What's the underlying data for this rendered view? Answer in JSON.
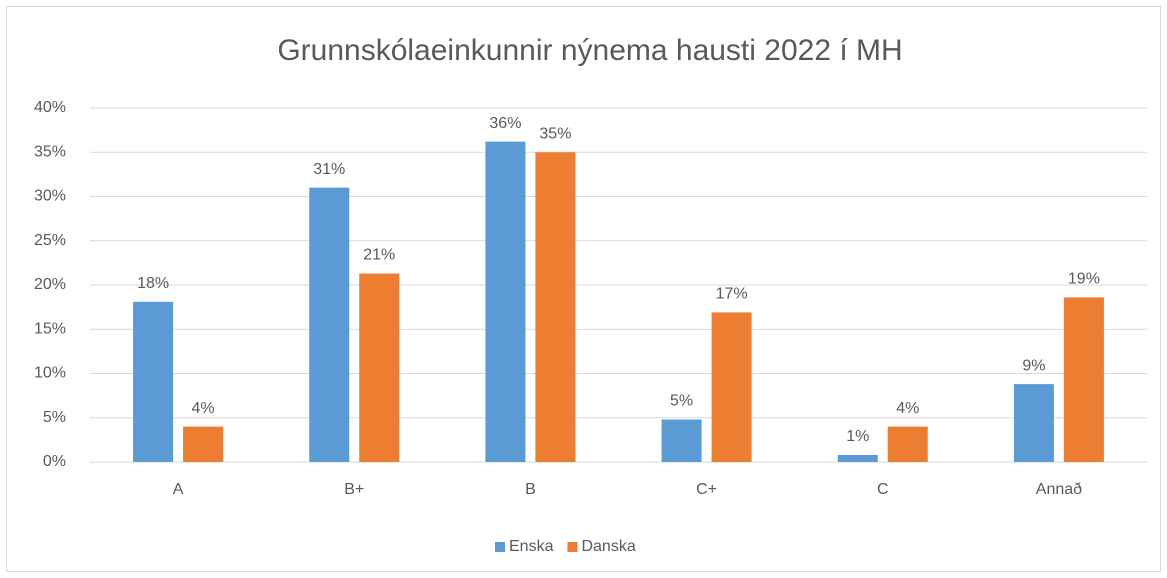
{
  "chart_data": {
    "type": "bar",
    "title": "Grunnskólaeinkunnir nýnema hausti 2022 í MH",
    "categories": [
      "A",
      "B+",
      "B",
      "C+",
      "C",
      "Annað"
    ],
    "series": [
      {
        "name": "Enska",
        "color": "#5b9bd5",
        "values": [
          18.1,
          31.0,
          36.2,
          4.8,
          0.8,
          8.8
        ],
        "value_labels": [
          "18%",
          "31%",
          "36%",
          "5%",
          "1%",
          "9%"
        ]
      },
      {
        "name": "Danska",
        "color": "#ed7d31",
        "values": [
          4.0,
          21.3,
          35.0,
          16.9,
          4.0,
          18.6
        ],
        "value_labels": [
          "4%",
          "21%",
          "35%",
          "17%",
          "4%",
          "19%"
        ]
      }
    ],
    "ylim": [
      0,
      40
    ],
    "yticks": [
      {
        "value": 0,
        "label": "0%"
      },
      {
        "value": 5,
        "label": "5%"
      },
      {
        "value": 10,
        "label": "10%"
      },
      {
        "value": 15,
        "label": "15%"
      },
      {
        "value": 20,
        "label": "20%"
      },
      {
        "value": 25,
        "label": "25%"
      },
      {
        "value": 30,
        "label": "30%"
      },
      {
        "value": 35,
        "label": "35%"
      },
      {
        "value": 40,
        "label": "40%"
      }
    ],
    "grid": true,
    "legend": "bottom"
  }
}
